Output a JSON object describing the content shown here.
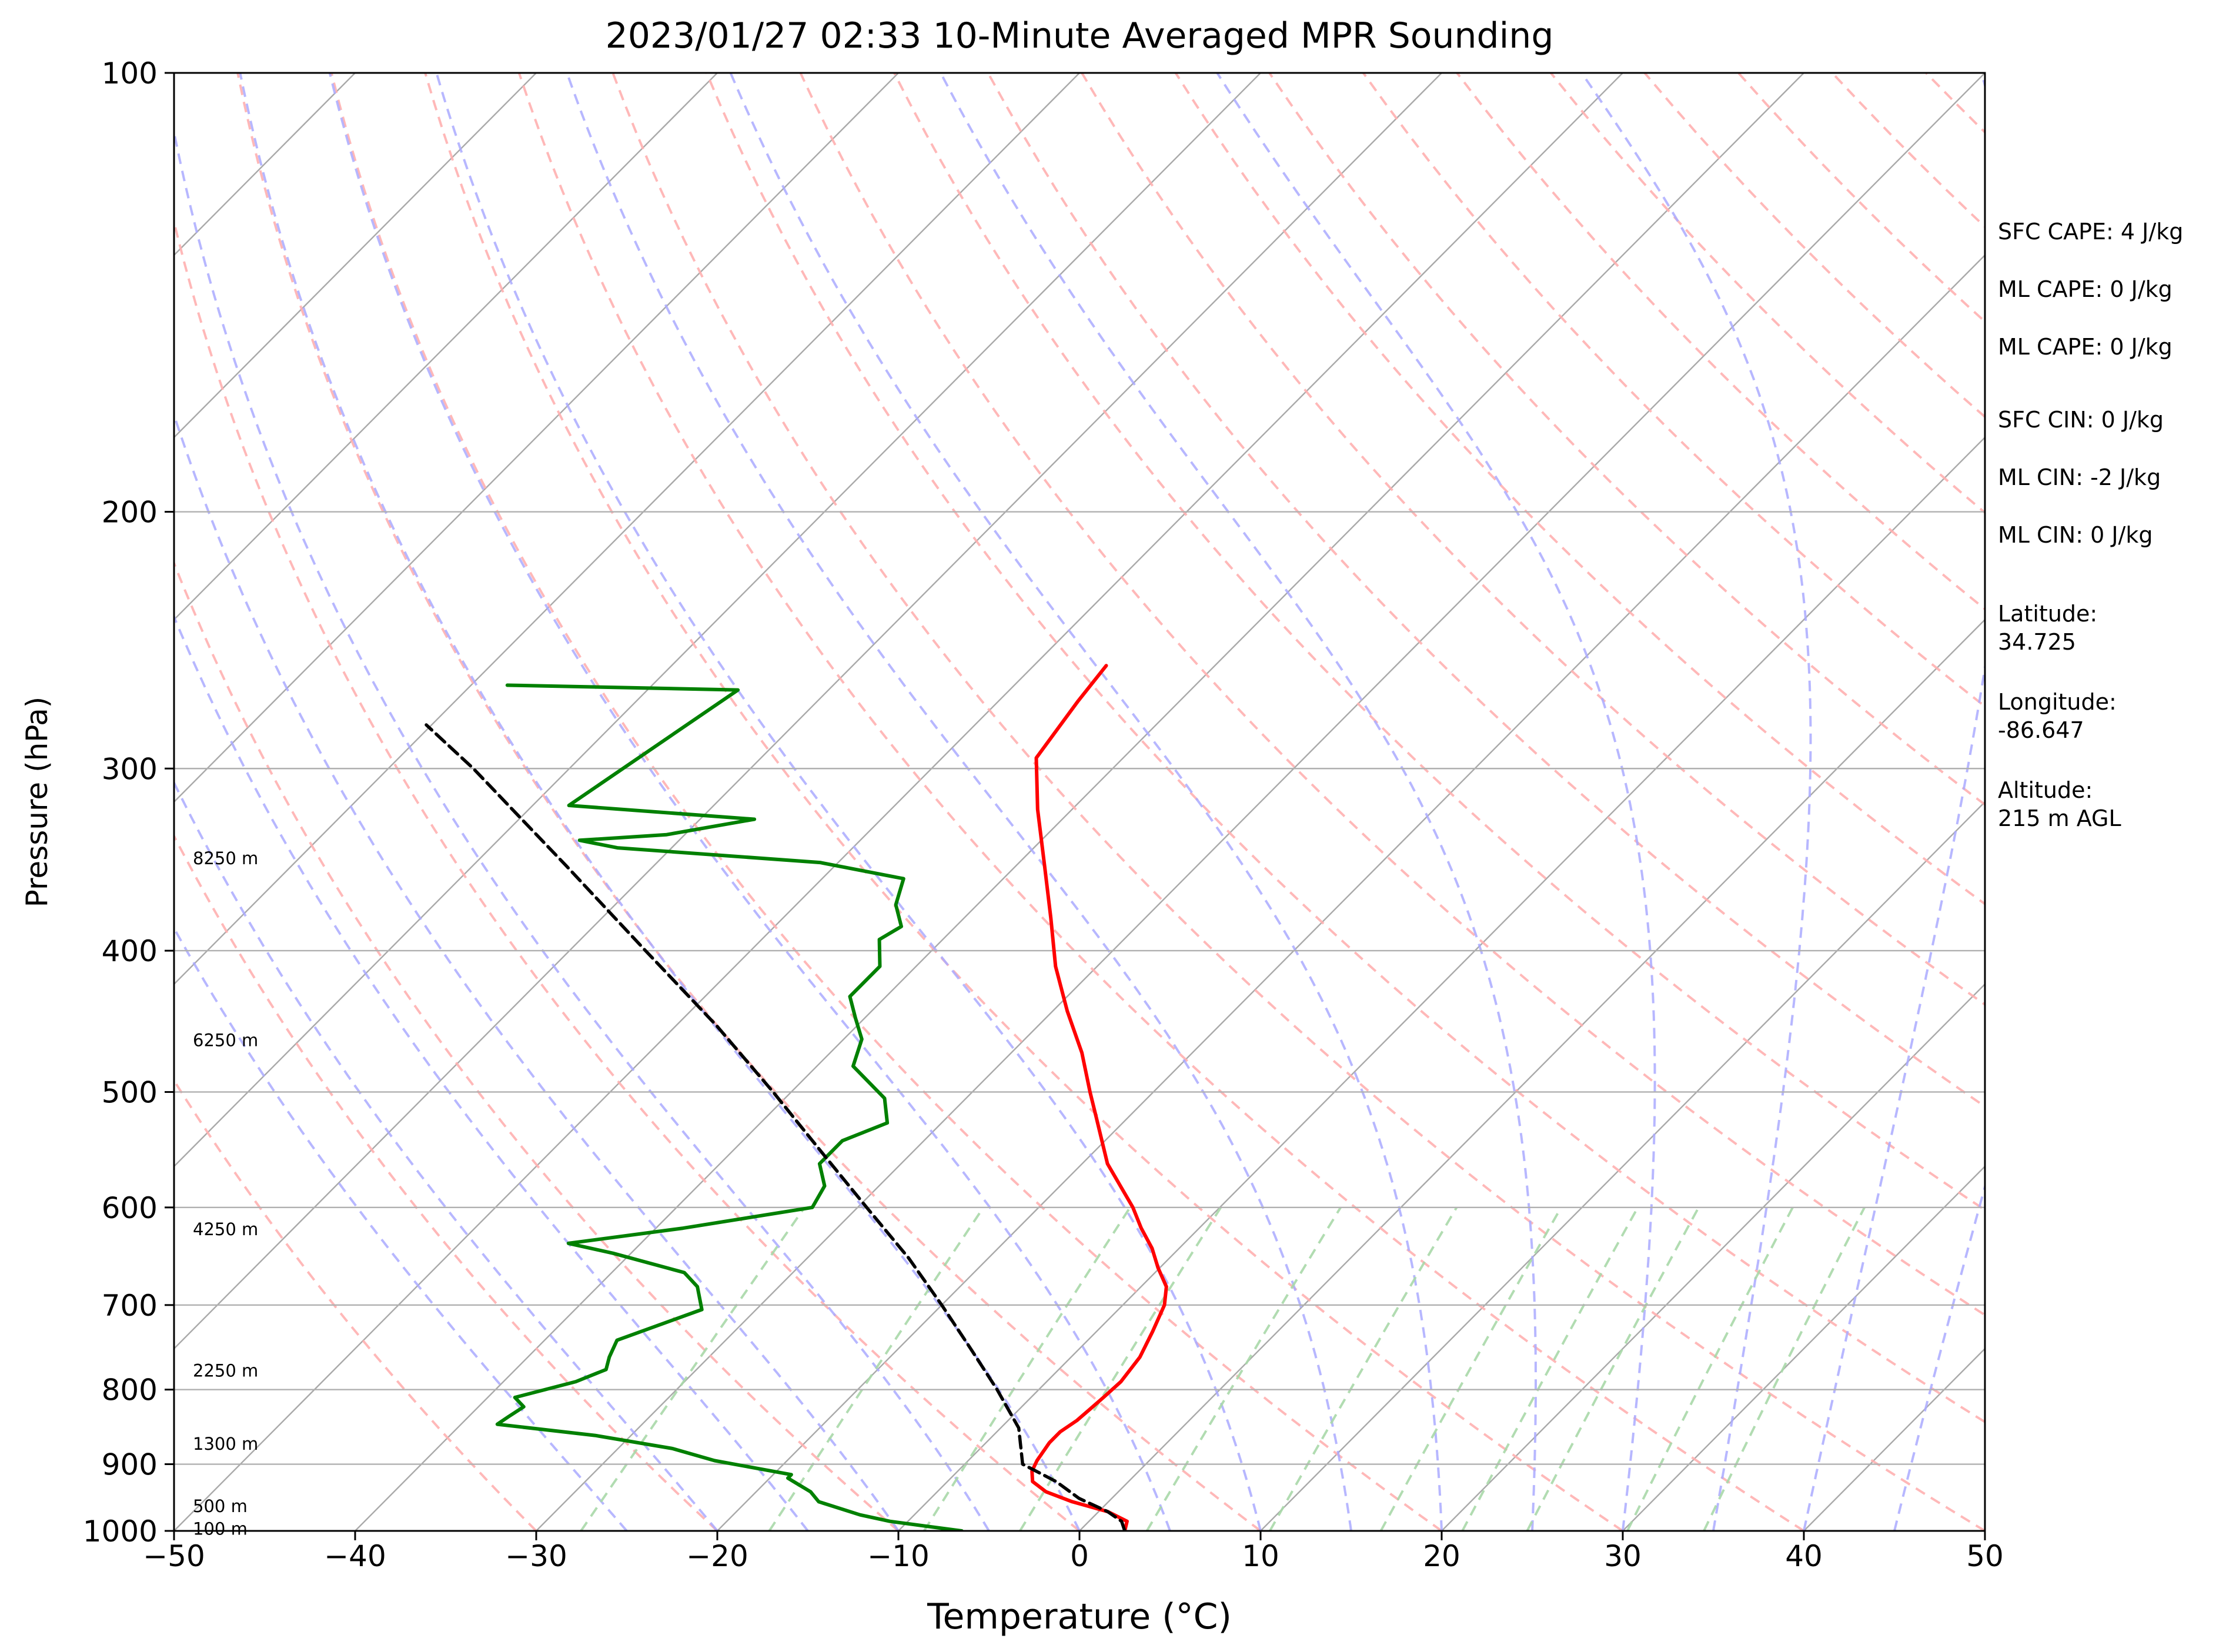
{
  "chart_data": {
    "type": "line",
    "title": "2023/01/27 02:33 10-Minute Averaged MPR Sounding",
    "xlabel": "Temperature (°C)",
    "ylabel": "Pressure (hPa)",
    "xlim": [
      -50,
      50
    ],
    "ylim": [
      1000,
      100
    ],
    "yscale": "log",
    "skew": true,
    "x_ticks": [
      "−50",
      "−40",
      "−30",
      "−20",
      "−10",
      "0",
      "10",
      "20",
      "30",
      "40",
      "50"
    ],
    "y_ticks": [
      "100",
      "200",
      "300",
      "400",
      "500",
      "600",
      "700",
      "800",
      "900",
      "1000"
    ],
    "grid": true,
    "series": [
      {
        "role": "temperature",
        "color": "#ff0000",
        "points": [
          [
            1000,
            2.5
          ],
          [
            985,
            2.1
          ],
          [
            970,
            0.5
          ],
          [
            955,
            -2.0
          ],
          [
            940,
            -4.0
          ],
          [
            925,
            -5.3
          ],
          [
            910,
            -5.9
          ],
          [
            895,
            -6.2
          ],
          [
            870,
            -6.5
          ],
          [
            855,
            -6.5
          ],
          [
            840,
            -6.2
          ],
          [
            825,
            -6.1
          ],
          [
            810,
            -6.0
          ],
          [
            790,
            -5.9
          ],
          [
            760,
            -6.2
          ],
          [
            730,
            -6.9
          ],
          [
            700,
            -7.7
          ],
          [
            680,
            -8.6
          ],
          [
            660,
            -10.1
          ],
          [
            640,
            -11.5
          ],
          [
            620,
            -13.2
          ],
          [
            600,
            -14.8
          ],
          [
            560,
            -18.6
          ],
          [
            520,
            -21.8
          ],
          [
            500,
            -23.5
          ],
          [
            470,
            -26.1
          ],
          [
            440,
            -29.2
          ],
          [
            410,
            -32.3
          ],
          [
            380,
            -35.2
          ],
          [
            350,
            -38.4
          ],
          [
            320,
            -41.9
          ],
          [
            295,
            -44.8
          ],
          [
            270,
            -45.6
          ],
          [
            255,
            -46.0
          ]
        ]
      },
      {
        "role": "dewpoint",
        "color": "#008000",
        "points": [
          [
            1000,
            -6.5
          ],
          [
            995,
            -8.0
          ],
          [
            985,
            -11.0
          ],
          [
            975,
            -13.0
          ],
          [
            955,
            -16.0
          ],
          [
            940,
            -17.0
          ],
          [
            925,
            -18.5
          ],
          [
            920,
            -19.0
          ],
          [
            915,
            -19.0
          ],
          [
            895,
            -24.0
          ],
          [
            878,
            -27.0
          ],
          [
            860,
            -32.0
          ],
          [
            845,
            -38.0
          ],
          [
            835,
            -37.8
          ],
          [
            822,
            -37.5
          ],
          [
            810,
            -38.5
          ],
          [
            790,
            -36.0
          ],
          [
            775,
            -35.0
          ],
          [
            760,
            -35.5
          ],
          [
            740,
            -36.0
          ],
          [
            705,
            -33.0
          ],
          [
            680,
            -34.5
          ],
          [
            665,
            -36.0
          ],
          [
            645,
            -41.0
          ],
          [
            635,
            -44.0
          ],
          [
            620,
            -38.5
          ],
          [
            600,
            -32.5
          ],
          [
            580,
            -33.0
          ],
          [
            560,
            -34.5
          ],
          [
            540,
            -34.5
          ],
          [
            525,
            -33.0
          ],
          [
            505,
            -34.5
          ],
          [
            480,
            -38.0
          ],
          [
            460,
            -39.0
          ],
          [
            445,
            -40.5
          ],
          [
            430,
            -42.0
          ],
          [
            410,
            -42.0
          ],
          [
            393,
            -43.5
          ],
          [
            385,
            -43.0
          ],
          [
            372,
            -44.5
          ],
          [
            357,
            -45.5
          ],
          [
            348,
            -51.0
          ],
          [
            340,
            -63.0
          ],
          [
            336,
            -65.5
          ],
          [
            333,
            -61.0
          ],
          [
            325,
            -57.0
          ],
          [
            318,
            -68.0
          ],
          [
            265,
            -65.0
          ],
          [
            263,
            -78.0
          ]
        ]
      },
      {
        "role": "parcel",
        "color": "#000000",
        "style": "dashed",
        "points": [
          [
            1000,
            2.5
          ],
          [
            985,
            1.8
          ],
          [
            970,
            0.5
          ],
          [
            950,
            -1.8
          ],
          [
            925,
            -4.0
          ],
          [
            900,
            -6.8
          ],
          [
            850,
            -9.0
          ],
          [
            800,
            -12.3
          ],
          [
            750,
            -16.0
          ],
          [
            700,
            -20.0
          ],
          [
            650,
            -24.4
          ],
          [
            600,
            -29.5
          ],
          [
            550,
            -35.0
          ],
          [
            500,
            -41.0
          ],
          [
            450,
            -47.8
          ],
          [
            400,
            -55.8
          ],
          [
            350,
            -64.8
          ],
          [
            300,
            -75.3
          ],
          [
            280,
            -80.3
          ]
        ]
      }
    ],
    "height_annotations": [
      "8250 m",
      "6250 m",
      "4250 m",
      "2250 m",
      "1300 m",
      "500 m",
      "100 m"
    ],
    "stats": [
      "SFC CAPE: 4 J/kg",
      "ML CAPE: 0 J/kg",
      "ML CAPE: 0 J/kg",
      "SFC CIN: 0 J/kg",
      "ML CIN: -2 J/kg",
      "ML CIN: 0 J/kg",
      "Latitude:\n34.725",
      "Longitude:\n-86.647",
      "Altitude:\n215 m AGL"
    ],
    "background_lines": {
      "isotherm_color": "#a9a9a9",
      "dry_adiabat_color": "#ffb0b0",
      "moist_adiabat_color": "#aaaaff",
      "mixing_ratio_color": "#a8d8a8"
    }
  }
}
